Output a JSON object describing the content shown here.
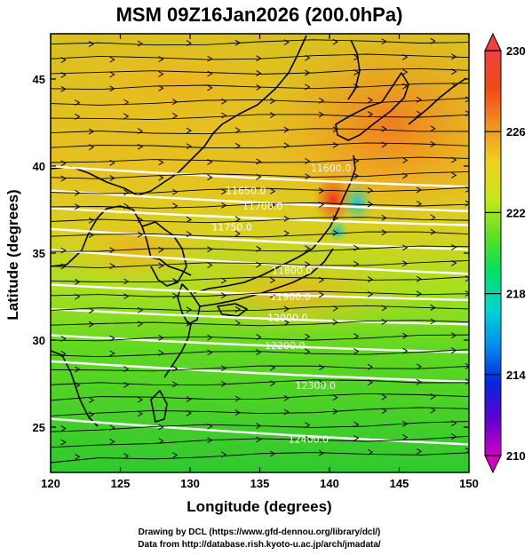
{
  "title": "MSM 09Z16Jan2026 (200.0hPa)",
  "x_axis": {
    "label": "Longitude (degrees)",
    "ticks": [
      "120",
      "125",
      "130",
      "135",
      "140",
      "145",
      "150"
    ],
    "range": [
      120,
      150
    ]
  },
  "y_axis": {
    "label": "Latitude  (degrees)",
    "ticks": [
      "25",
      "30",
      "35",
      "40",
      "45"
    ],
    "range": [
      22.4,
      47.6
    ]
  },
  "colorbar": {
    "ticks": [
      "230",
      "226",
      "222",
      "218",
      "214",
      "210"
    ],
    "range": [
      210,
      230
    ],
    "colors": [
      "#d000c8",
      "#6000d0",
      "#0028e0",
      "#0090f0",
      "#00d8d0",
      "#00e060",
      "#60e020",
      "#c8e818",
      "#f0d020",
      "#f09020",
      "#f04818",
      "#f04040"
    ]
  },
  "contours": {
    "color": "#ffffff",
    "labels": [
      {
        "text": "11600.0",
        "lon": 140.1,
        "lat": 39.7
      },
      {
        "text": "11650.0",
        "lon": 134.0,
        "lat": 38.4
      },
      {
        "text": "11700.0",
        "lon": 135.2,
        "lat": 37.5
      },
      {
        "text": "11750.0",
        "lon": 133.0,
        "lat": 36.3
      },
      {
        "text": "11800.0",
        "lon": 137.3,
        "lat": 33.8
      },
      {
        "text": "11900.0",
        "lon": 137.2,
        "lat": 32.3
      },
      {
        "text": "12000.0",
        "lon": 137.0,
        "lat": 31.1
      },
      {
        "text": "12200.0",
        "lon": 136.8,
        "lat": 29.5
      },
      {
        "text": "12300.0",
        "lon": 139.0,
        "lat": 27.2
      },
      {
        "text": "12400.0",
        "lon": 138.5,
        "lat": 24.1
      }
    ]
  },
  "credits": [
    "Drawing by DCL (https://www.gfd-dennou.org/library/dcl/)",
    "Data from http://database.rish.kyoto-u.ac.jp/arch/jmadata/"
  ]
}
